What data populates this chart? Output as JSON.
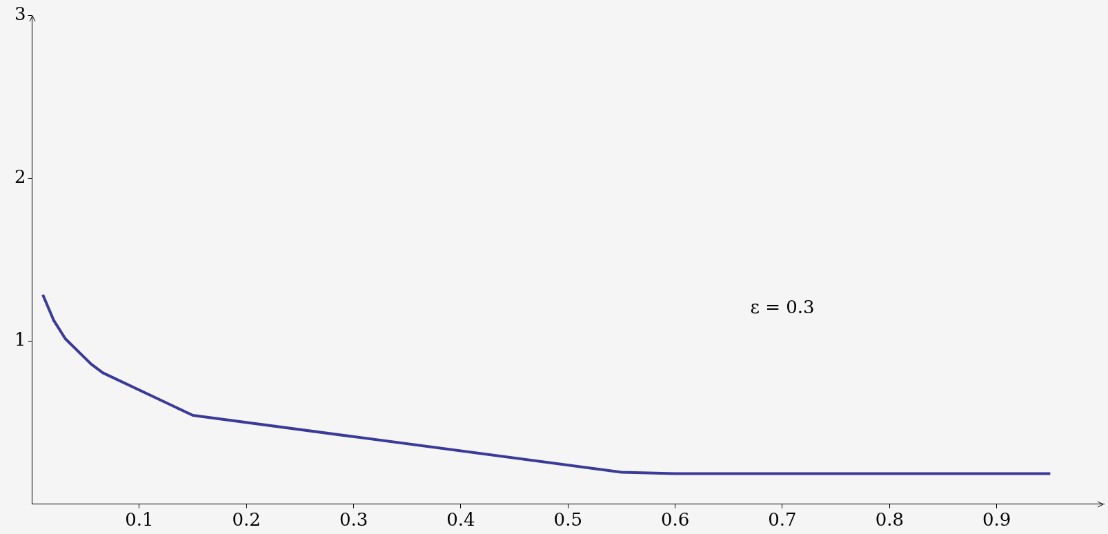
{
  "chart_data": {
    "type": "line",
    "x": [
      0.01,
      0.02,
      0.031,
      0.055,
      0.066,
      0.15,
      0.55,
      0.6,
      0.95
    ],
    "series": [
      {
        "color": "#3a3a9a",
        "values": [
          1.285,
          1.13,
          1.015,
          0.86,
          0.806,
          0.545,
          0.196,
          0.187,
          0.187
        ]
      }
    ],
    "xlim": [
      0,
      1
    ],
    "ylim": [
      0,
      3
    ],
    "xticks": [
      0.1,
      0.2,
      0.3,
      0.4,
      0.5,
      0.6,
      0.7,
      0.8,
      0.9
    ],
    "yticks": [
      1,
      2,
      3
    ],
    "annotations": [
      "ε = 0.3"
    ],
    "grid": false,
    "legend": false,
    "marker": "none",
    "line_style": "solid"
  }
}
